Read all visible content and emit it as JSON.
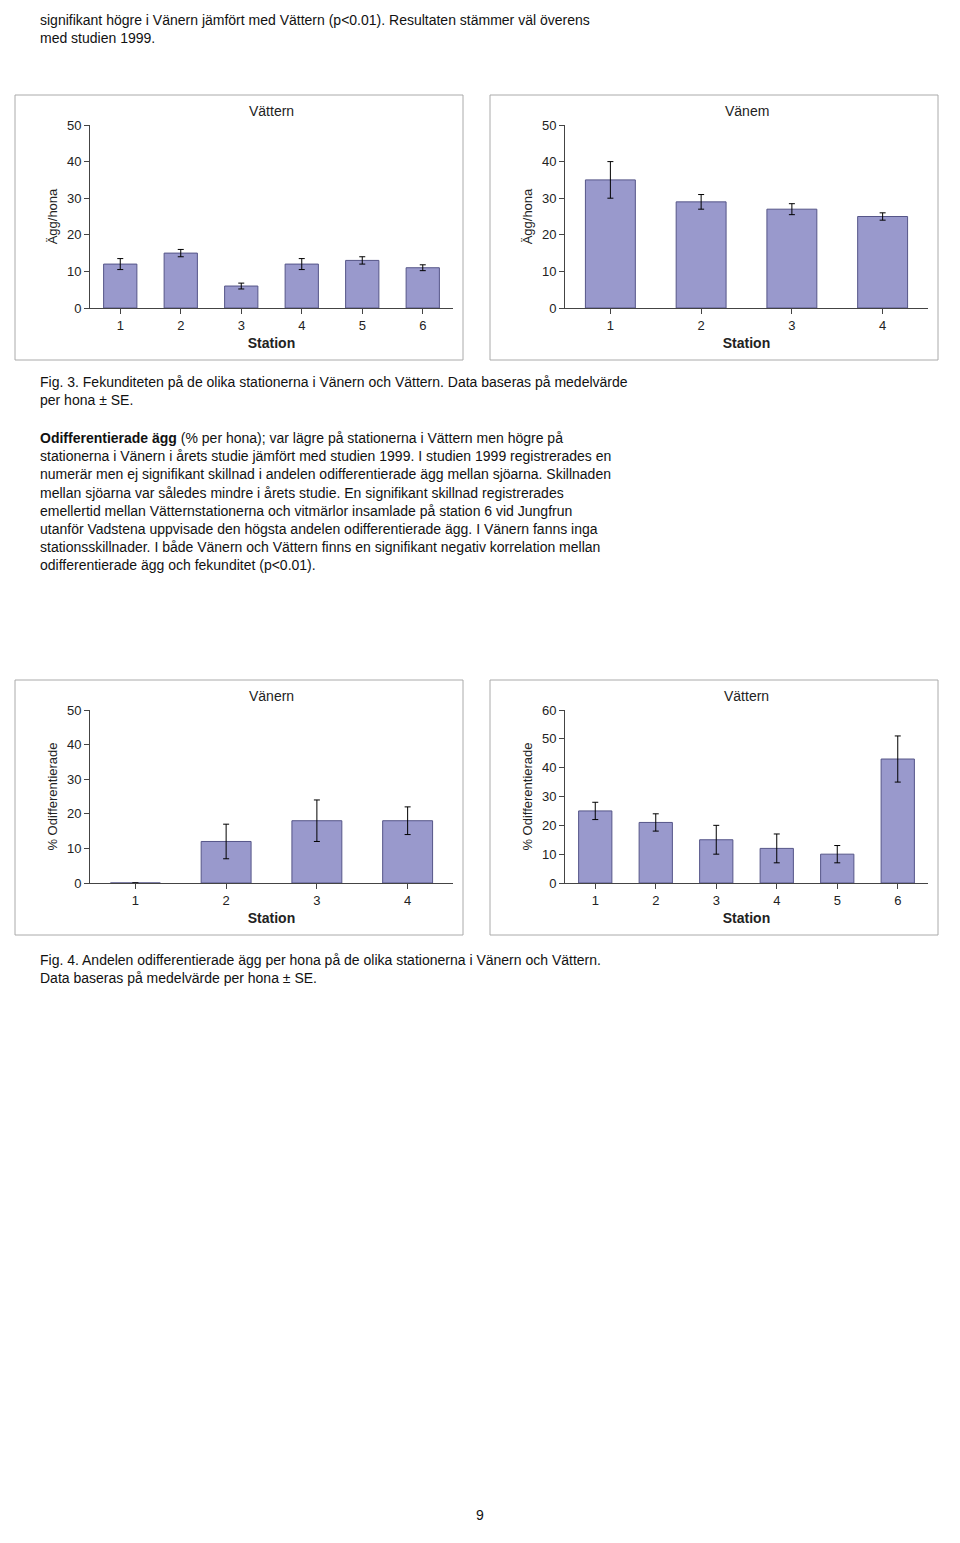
{
  "chart_data": [
    {
      "type": "bar",
      "title": "Vättern",
      "xlabel": "Station",
      "ylabel": "Ägg/hona",
      "categories": [
        "1",
        "2",
        "3",
        "4",
        "5",
        "6"
      ],
      "values": [
        12,
        15,
        6,
        12,
        13,
        11
      ],
      "errors": [
        1.5,
        1.0,
        0.8,
        1.5,
        1.0,
        0.8
      ],
      "color": "#9999CC",
      "ylim": [
        0,
        50
      ],
      "yticks": [
        0,
        10,
        20,
        30,
        40,
        50
      ],
      "grid": false
    },
    {
      "type": "bar",
      "title": "Vänem",
      "xlabel": "Station",
      "ylabel": "Ägg/hona",
      "categories": [
        "1",
        "2",
        "3",
        "4"
      ],
      "values": [
        35,
        29,
        27,
        25
      ],
      "errors": [
        5,
        2,
        1.5,
        1.0
      ],
      "color": "#9999CC",
      "ylim": [
        0,
        50
      ],
      "yticks": [
        0,
        10,
        20,
        30,
        40,
        50
      ],
      "grid": false
    },
    {
      "type": "bar",
      "title": "Vänern",
      "xlabel": "Station",
      "ylabel": "% Odifferentierade",
      "categories": [
        "1",
        "2",
        "3",
        "4"
      ],
      "values": [
        0,
        12,
        18,
        18
      ],
      "errors": [
        0,
        5,
        6,
        4
      ],
      "color": "#9999CC",
      "ylim": [
        0,
        50
      ],
      "yticks": [
        0,
        10,
        20,
        30,
        40,
        50
      ],
      "grid": false
    },
    {
      "type": "bar",
      "title": "Vättern",
      "xlabel": "Station",
      "ylabel": "% Odifferentierade",
      "categories": [
        "1",
        "2",
        "3",
        "4",
        "5",
        "6"
      ],
      "values": [
        25,
        21,
        15,
        12,
        10,
        43
      ],
      "errors": [
        3,
        3,
        5,
        5,
        3,
        8
      ],
      "color": "#9999CC",
      "ylim": [
        0,
        60
      ],
      "yticks": [
        0,
        10,
        20,
        30,
        40,
        50,
        60
      ],
      "grid": false
    }
  ],
  "annotations": [
    [
      "signifikant högre i Vänern jämfört med Vättern (p<0.01). Resultaten stämmer väl överens",
      "med studien 1999."
    ],
    [
      "Fig. 3. Fekunditeten på de olika stationerna i Vänern och Vättern. Data baseras på medelvärde",
      "per hona ± SE."
    ],
    [
      [
        "Odifferentierade ägg",
        " (% per hona); var lägre på stationerna i Vättern men högre på"
      ],
      "stationerna i Vänern i årets studie jämfört med studien 1999. I studien 1999 registrerades en",
      "numerär men ej signifikant skillnad i andelen odifferentierade ägg mellan sjöarna. Skillnaden",
      "mellan sjöarna var således mindre i årets studie. En signifikant skillnad registrerades",
      "emellertid mellan Vätternstationerna och vitmärlor insamlade på station 6 vid Jungfrun",
      "utanför Vadstena uppvisade den högsta andelen odifferentierade ägg. I Vänern fanns inga",
      "stationsskillnader. I både Vänern och Vättern finns en signifikant negativ korrelation mellan",
      "odifferentierade ägg och fekunditet (p<0.01)."
    ],
    [
      "Fig. 4. Andelen odifferentierade ägg per hona på de olika stationerna i Vänern och Vättern.",
      "Data baseras på medelvärde per hona ± SE."
    ],
    [
      "9"
    ]
  ]
}
